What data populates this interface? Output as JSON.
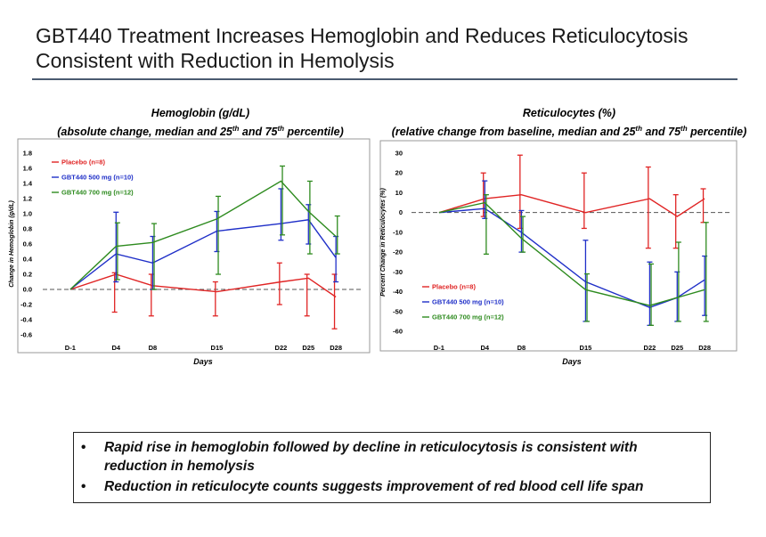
{
  "slide": {
    "title_line1": "GBT440 Treatment Increases Hemoglobin and Reduces Reticulocytosis",
    "title_line2": "Consistent with Reduction in Hemolysis"
  },
  "colors": {
    "placebo": "#e02424",
    "gbt500": "#1f2fc8",
    "gbt700": "#2e8b1f"
  },
  "bullets": [
    "Rapid rise in hemoglobin followed by decline in reticulocytosis is consistent with reduction in hemolysis",
    "Reduction in reticulocyte counts suggests improvement of red blood cell life span"
  ],
  "chart_data": [
    {
      "type": "line",
      "title": "Hemoglobin (g/dL)",
      "subtitle_pre": "(absolute change, median and 25",
      "subtitle_sup1": "th",
      "subtitle_mid": " and 75",
      "subtitle_sup2": "th",
      "subtitle_post": " percentile)",
      "xlabel": "Days",
      "ylabel": "Change in Hemoglobin (g/dL)",
      "categories": [
        "D-1",
        "D4",
        "D8",
        "D15",
        "D22",
        "D25",
        "D28"
      ],
      "x_days": [
        -1,
        4,
        8,
        15,
        22,
        25,
        28
      ],
      "ylim": [
        -0.6,
        1.8
      ],
      "yticks": [
        -0.6,
        -0.4,
        -0.2,
        0.0,
        0.2,
        0.4,
        0.6,
        0.8,
        1.0,
        1.2,
        1.4,
        1.6,
        1.8
      ],
      "ytick_labels": [
        "-0.6",
        "-0.4",
        "-0.2",
        "0.0",
        "0.2",
        "0.4",
        "0.6",
        "0.8",
        "1.0",
        "1.2",
        "1.4",
        "1.6",
        "1.8"
      ],
      "reference_line": 0,
      "legend_position": "top-left",
      "series": [
        {
          "name": "Placebo (n=8)",
          "color_key": "placebo",
          "values": [
            0,
            0.2,
            0.05,
            -0.03,
            0.1,
            0.15,
            -0.1
          ],
          "lower": [
            0,
            -0.3,
            -0.35,
            -0.35,
            -0.2,
            -0.35,
            -0.52
          ],
          "upper": [
            0,
            0.22,
            0.2,
            0.1,
            0.35,
            0.2,
            0.2
          ]
        },
        {
          "name": "GBT440 500 mg (n=10)",
          "color_key": "gbt500",
          "values": [
            0,
            0.47,
            0.35,
            0.77,
            0.87,
            0.92,
            0.42
          ],
          "lower": [
            0,
            0.1,
            0.0,
            0.5,
            0.65,
            0.6,
            0.1
          ],
          "upper": [
            0,
            1.02,
            0.7,
            1.03,
            1.33,
            1.12,
            0.7
          ]
        },
        {
          "name": "GBT440 700 mg (n=12)",
          "color_key": "gbt700",
          "values": [
            0,
            0.57,
            0.62,
            0.93,
            1.43,
            1.03,
            0.7
          ],
          "lower": [
            0,
            0.13,
            0.0,
            0.2,
            0.72,
            0.47,
            0.47
          ],
          "upper": [
            0,
            0.88,
            0.87,
            1.23,
            1.63,
            1.43,
            0.97
          ]
        }
      ]
    },
    {
      "type": "line",
      "title": "Reticulocytes (%)",
      "subtitle_pre": "(relative change from baseline, median and 25",
      "subtitle_sup1": "th",
      "subtitle_mid": " and 75",
      "subtitle_sup2": "th",
      "subtitle_post": " percentile)",
      "xlabel": "Days",
      "ylabel": "Percent Change in Reticulocytes (%)",
      "categories": [
        "D-1",
        "D4",
        "D8",
        "D15",
        "D22",
        "D25",
        "D28"
      ],
      "x_days": [
        -1,
        4,
        8,
        15,
        22,
        25,
        28
      ],
      "ylim": [
        -60,
        30
      ],
      "yticks": [
        -60,
        -50,
        -40,
        -30,
        -20,
        -10,
        0,
        10,
        20,
        30
      ],
      "ytick_labels": [
        "-60",
        "-50",
        "-40",
        "-30",
        "-20",
        "-10",
        "0",
        "10",
        "20",
        "30"
      ],
      "reference_line": 0,
      "legend_position": "bottom-left",
      "series": [
        {
          "name": "Placebo (n=8)",
          "color_key": "placebo",
          "values": [
            0,
            7,
            9,
            0,
            7,
            -2,
            7
          ],
          "lower": [
            0,
            -2,
            -8,
            -8,
            -18,
            -18,
            -5
          ],
          "upper": [
            0,
            20,
            29,
            20,
            23,
            9,
            12
          ]
        },
        {
          "name": "GBT440 500 mg (n=10)",
          "color_key": "gbt500",
          "values": [
            0,
            2,
            -10,
            -35,
            -48,
            -43,
            -34
          ],
          "lower": [
            0,
            -3,
            -20,
            -55,
            -57,
            -55,
            -52
          ],
          "upper": [
            0,
            16,
            1,
            -14,
            -25,
            -30,
            -22
          ]
        },
        {
          "name": "GBT440 700 mg (n=12)",
          "color_key": "gbt700",
          "values": [
            0,
            5,
            -13,
            -39,
            -47,
            -43,
            -39
          ],
          "lower": [
            0,
            -21,
            -20,
            -55,
            -57,
            -55,
            -55
          ],
          "upper": [
            0,
            9,
            -2,
            -31,
            -26,
            -15,
            -5
          ]
        }
      ]
    }
  ]
}
